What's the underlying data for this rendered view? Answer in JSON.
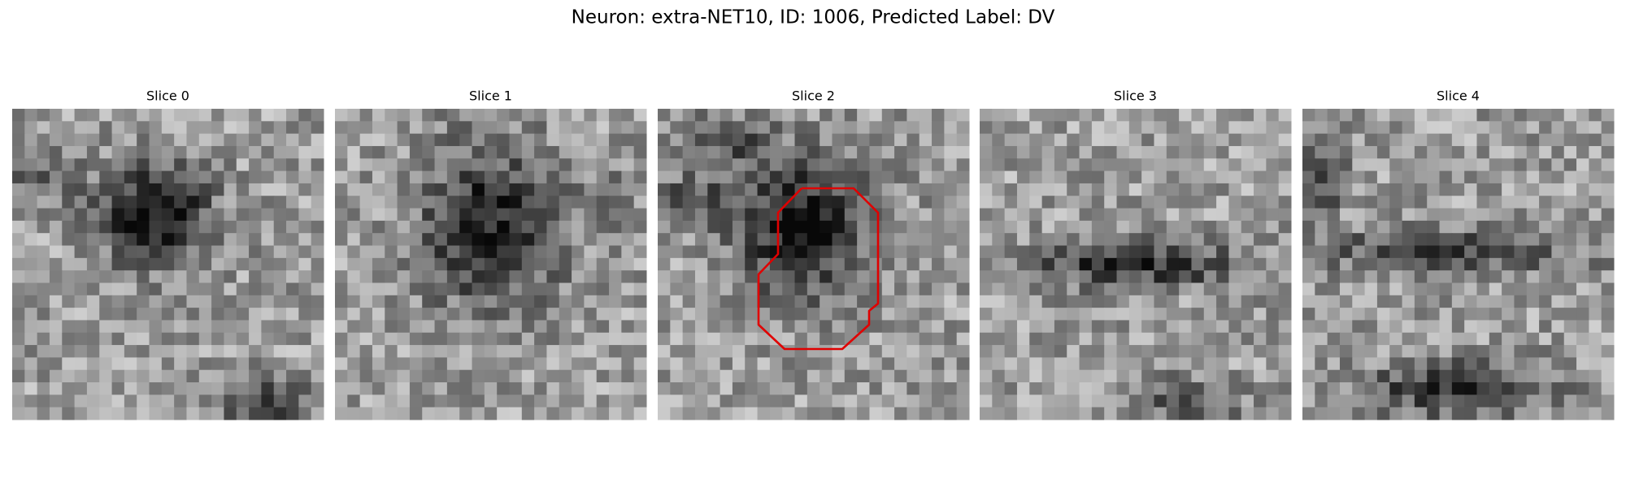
{
  "title": "Neuron: extra-NET10, ID: 1006, Predicted Label: DV",
  "panels": [
    {
      "title": "Slice 0"
    },
    {
      "title": "Slice 1"
    },
    {
      "title": "Slice 2"
    },
    {
      "title": "Slice 3"
    },
    {
      "title": "Slice 4"
    }
  ]
}
